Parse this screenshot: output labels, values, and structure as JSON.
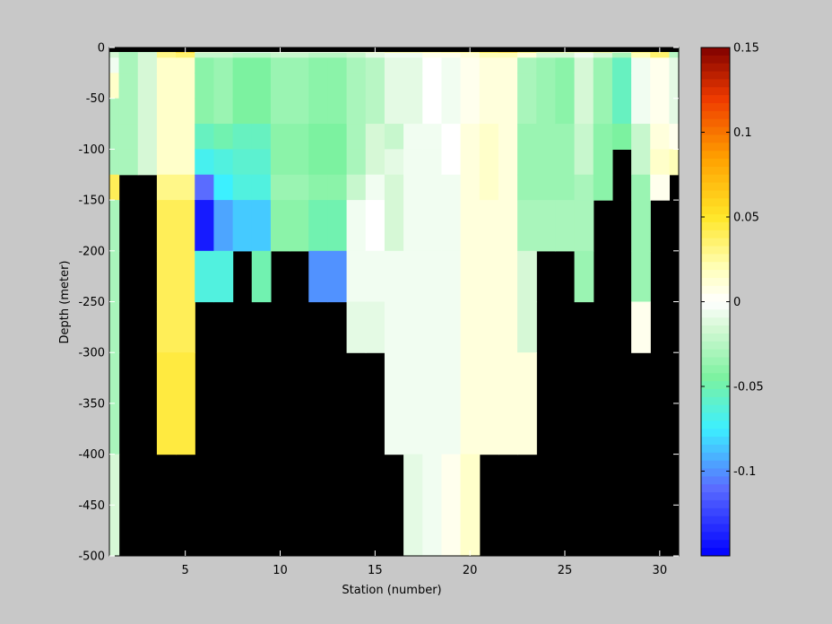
{
  "chart_data": {
    "type": "heatmap",
    "xlabel": "Station (number)",
    "ylabel": "Depth (meter)",
    "xlim": [
      1,
      31
    ],
    "ylim": [
      -500,
      0
    ],
    "xticks": [
      5,
      10,
      15,
      20,
      25,
      30
    ],
    "yticks": [
      0,
      -50,
      -100,
      -150,
      -200,
      -250,
      -300,
      -350,
      -400,
      -450,
      -500
    ],
    "colorbar": {
      "clim": [
        -0.15,
        0.15
      ],
      "ticks": [
        0.15,
        0.1,
        0.05,
        0,
        -0.05,
        -0.1
      ],
      "tick_labels": [
        "0.15",
        "0.1",
        "0.05",
        "0",
        "-0.05",
        "-0.1"
      ],
      "colormap": "blue-cyan-green-white-yellow-orange-red",
      "colormap_stops": [
        {
          "v": -0.15,
          "c": "#0000ff"
        },
        {
          "v": -0.11,
          "c": "#5a6cff"
        },
        {
          "v": -0.075,
          "c": "#3cf0ff"
        },
        {
          "v": -0.045,
          "c": "#7cf2a0"
        },
        {
          "v": -0.015,
          "c": "#d6f8d6"
        },
        {
          "v": 0.0,
          "c": "#ffffff"
        },
        {
          "v": 0.02,
          "c": "#ffffb8"
        },
        {
          "v": 0.05,
          "c": "#ffe628"
        },
        {
          "v": 0.085,
          "c": "#ffa000"
        },
        {
          "v": 0.12,
          "c": "#ee3a00"
        },
        {
          "v": 0.15,
          "c": "#800000"
        }
      ]
    },
    "background_color": "#000000",
    "figure_background": "#c8c8c8",
    "depth_levels": [
      0,
      -5,
      -10,
      -25,
      -50,
      -75,
      -100,
      -125,
      -150,
      -200,
      -250,
      -300,
      -400,
      -500
    ],
    "stations": [
      1,
      2,
      3,
      4,
      5,
      6,
      7,
      8,
      9,
      10,
      11,
      12,
      13,
      14,
      15,
      16,
      17,
      18,
      19,
      20,
      21,
      22,
      23,
      24,
      25,
      26,
      27,
      28,
      29,
      30,
      31
    ],
    "values": [
      [
        -0.02,
        -0.015,
        -0.005,
        0.015,
        -0.03,
        -0.03,
        -0.03,
        0.04,
        -0.03,
        -0.03,
        -0.03,
        -0.03,
        -0.015
      ],
      [
        -0.03,
        -0.03,
        -0.03,
        -0.03,
        -0.03,
        -0.03,
        -0.03,
        null,
        null,
        null,
        null,
        null,
        null
      ],
      [
        -0.02,
        -0.015,
        -0.015,
        -0.015,
        -0.015,
        -0.015,
        -0.015,
        null,
        null,
        null,
        null,
        null,
        null
      ],
      [
        0.035,
        0.03,
        0.015,
        0.015,
        0.015,
        0.015,
        0.015,
        0.03,
        0.04,
        0.04,
        0.04,
        0.045,
        null
      ],
      [
        0.06,
        0.035,
        0.015,
        0.015,
        0.015,
        0.015,
        0.015,
        0.03,
        0.04,
        0.04,
        0.04,
        0.045,
        null
      ],
      [
        0.01,
        -0.02,
        -0.04,
        -0.04,
        -0.04,
        -0.055,
        -0.07,
        -0.11,
        -0.14,
        -0.065,
        null,
        null,
        null
      ],
      [
        0.01,
        -0.02,
        -0.035,
        -0.035,
        -0.035,
        -0.05,
        -0.065,
        -0.075,
        -0.095,
        -0.065,
        null,
        null,
        null
      ],
      [
        0.0,
        -0.025,
        -0.045,
        -0.045,
        -0.045,
        -0.055,
        -0.06,
        -0.065,
        -0.085,
        null,
        null,
        null,
        null
      ],
      [
        0.0,
        -0.025,
        -0.045,
        -0.045,
        -0.045,
        -0.055,
        -0.06,
        -0.065,
        -0.085,
        -0.05,
        null,
        null,
        null
      ],
      [
        0.005,
        -0.02,
        -0.035,
        -0.035,
        -0.035,
        -0.04,
        -0.04,
        -0.035,
        -0.04,
        null,
        null,
        null,
        null
      ],
      [
        0.005,
        -0.02,
        -0.035,
        -0.035,
        -0.035,
        -0.04,
        -0.04,
        -0.035,
        -0.04,
        null,
        null,
        null,
        null
      ],
      [
        0.005,
        -0.025,
        -0.04,
        -0.04,
        -0.04,
        -0.045,
        -0.045,
        -0.04,
        -0.05,
        -0.1,
        null,
        null,
        null
      ],
      [
        0.005,
        -0.025,
        -0.04,
        -0.04,
        -0.04,
        -0.045,
        -0.045,
        -0.04,
        -0.05,
        -0.1,
        null,
        null,
        null
      ],
      [
        0.01,
        -0.02,
        -0.03,
        -0.03,
        -0.03,
        -0.03,
        -0.03,
        -0.02,
        -0.005,
        -0.005,
        -0.01,
        null,
        null
      ],
      [
        0.015,
        -0.01,
        -0.025,
        -0.025,
        -0.025,
        -0.015,
        -0.015,
        -0.005,
        0.0,
        -0.005,
        -0.01,
        null,
        null
      ],
      [
        0.03,
        -0.005,
        -0.01,
        -0.01,
        -0.01,
        -0.02,
        -0.01,
        -0.015,
        -0.015,
        -0.005,
        -0.005,
        -0.005,
        null
      ],
      [
        0.03,
        -0.005,
        -0.01,
        -0.01,
        -0.01,
        -0.005,
        -0.005,
        -0.005,
        -0.005,
        -0.005,
        -0.005,
        -0.005,
        -0.01
      ],
      [
        0.03,
        0.005,
        0.0,
        0.0,
        0.0,
        -0.005,
        -0.005,
        -0.005,
        -0.005,
        -0.005,
        -0.005,
        -0.005,
        -0.005
      ],
      [
        0.035,
        0.005,
        -0.005,
        -0.005,
        -0.005,
        0.0,
        0.0,
        -0.005,
        -0.005,
        -0.005,
        -0.005,
        -0.005,
        0.005
      ],
      [
        0.035,
        0.01,
        0.005,
        0.005,
        0.005,
        0.01,
        0.01,
        0.01,
        0.01,
        0.01,
        0.01,
        0.01,
        0.015
      ],
      [
        0.05,
        0.02,
        0.01,
        0.01,
        0.01,
        0.015,
        0.015,
        0.015,
        0.01,
        0.01,
        0.01,
        0.01,
        null
      ],
      [
        0.06,
        0.02,
        0.01,
        0.01,
        0.01,
        0.01,
        0.01,
        0.01,
        0.01,
        0.01,
        0.01,
        0.01,
        null
      ],
      [
        0.04,
        0.01,
        -0.03,
        -0.03,
        -0.03,
        -0.035,
        -0.035,
        -0.035,
        -0.03,
        -0.015,
        -0.015,
        0.01,
        null
      ],
      [
        0.025,
        -0.015,
        -0.035,
        -0.035,
        -0.035,
        -0.035,
        -0.035,
        -0.035,
        -0.03,
        null,
        null,
        null,
        null
      ],
      [
        0.025,
        -0.015,
        -0.04,
        -0.04,
        -0.04,
        -0.035,
        -0.035,
        -0.035,
        -0.03,
        null,
        null,
        null,
        null
      ],
      [
        0.025,
        -0.005,
        -0.015,
        -0.015,
        -0.015,
        -0.02,
        -0.02,
        -0.03,
        -0.03,
        -0.035,
        null,
        null,
        null
      ],
      [
        0.03,
        -0.015,
        -0.035,
        -0.035,
        -0.035,
        -0.04,
        -0.04,
        -0.04,
        null,
        null,
        null,
        null,
        null
      ],
      [
        0.01,
        -0.03,
        -0.055,
        -0.055,
        -0.055,
        -0.045,
        null,
        null,
        null,
        null,
        null,
        null,
        null
      ],
      [
        0.035,
        0.02,
        -0.005,
        -0.005,
        -0.005,
        -0.02,
        -0.02,
        -0.035,
        -0.035,
        -0.035,
        0.005,
        null,
        null
      ],
      [
        0.04,
        0.035,
        0.005,
        0.005,
        0.005,
        0.01,
        0.015,
        0.005,
        null,
        null,
        null,
        null,
        null
      ],
      [
        -0.03,
        -0.025,
        -0.01,
        -0.01,
        -0.01,
        0.005,
        0.02,
        null,
        null,
        null,
        null,
        null,
        null
      ]
    ]
  }
}
